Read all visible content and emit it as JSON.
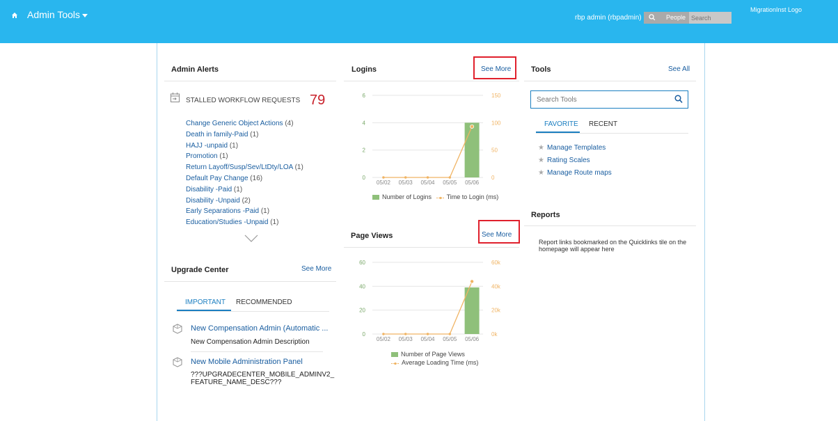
{
  "topbar": {
    "title": "Admin Tools",
    "user": "rbp admin (rbpadmin)",
    "search_scope": "People",
    "search_placeholder": "Search",
    "logo": "MigrationInst Logo"
  },
  "admin_alerts": {
    "title": "Admin Alerts",
    "stalled_label": "STALLED WORKFLOW REQUESTS",
    "stalled_count": "79",
    "items": [
      {
        "label": "Change Generic Object Actions",
        "count": "(4)"
      },
      {
        "label": "Death in family-Paid",
        "count": "(1)"
      },
      {
        "label": "HAJJ -unpaid",
        "count": "(1)"
      },
      {
        "label": "Promotion",
        "count": "(1)"
      },
      {
        "label": "Return Layoff/Susp/Sev/LtDty/LOA",
        "count": "(1)"
      },
      {
        "label": "Default Pay Change",
        "count": "(16)"
      },
      {
        "label": "Disability -Paid",
        "count": "(1)"
      },
      {
        "label": "Disability -Unpaid",
        "count": "(2)"
      },
      {
        "label": "Early Separations -Paid",
        "count": "(1)"
      },
      {
        "label": "Education/Studies -Unpaid",
        "count": "(1)"
      }
    ]
  },
  "upgrade_center": {
    "title": "Upgrade Center",
    "see_more": "See More",
    "tabs": [
      "IMPORTANT",
      "RECOMMENDED"
    ],
    "items": [
      {
        "title": "New Compensation Admin (Automatic ...",
        "desc": "New Compensation Admin Description"
      },
      {
        "title": "New Mobile Administration Panel",
        "desc1": "???UPGRADECENTER_MOBILE_ADMINV2_",
        "desc2": "FEATURE_NAME_DESC???"
      }
    ]
  },
  "logins": {
    "title": "Logins",
    "see_more": "See More"
  },
  "page_views": {
    "title": "Page Views",
    "see_more": "See More"
  },
  "tools": {
    "title": "Tools",
    "see_all": "See All",
    "search_placeholder": "Search Tools",
    "tabs": [
      "FAVORITE",
      "RECENT"
    ],
    "favorites": [
      "Manage Templates",
      "Rating Scales",
      "Manage Route maps"
    ]
  },
  "reports": {
    "title": "Reports",
    "text": "Report links bookmarked on the Quicklinks tile on the homepage will appear here"
  },
  "colors": {
    "topbar": "#29b6ee",
    "bar": "#8fc07a",
    "line": "#f0b464",
    "highlight": "#e0202c",
    "alert_count": "#c8202a"
  },
  "chart_data": [
    {
      "type": "bar",
      "categories": [
        "05/02",
        "05/03",
        "05/04",
        "05/05",
        "05/06"
      ],
      "series": [
        {
          "name": "Number of Logins",
          "type": "bar",
          "axis": "left",
          "values": [
            0,
            0,
            0,
            0,
            4
          ]
        },
        {
          "name": "Time to Login (ms)",
          "type": "line",
          "axis": "right",
          "values": [
            0,
            0,
            0,
            0,
            93
          ]
        }
      ],
      "yleft": {
        "ticks": [
          "0",
          "2",
          "4",
          "6"
        ],
        "lim": [
          0,
          6
        ]
      },
      "yright": {
        "ticks": [
          "0",
          "50",
          "100",
          "150"
        ],
        "lim": [
          0,
          150
        ]
      },
      "legend": "bottom"
    },
    {
      "type": "bar",
      "categories": [
        "05/02",
        "05/03",
        "05/04",
        "05/05",
        "05/06"
      ],
      "series": [
        {
          "name": "Number of Page Views",
          "type": "bar",
          "axis": "left",
          "values": [
            0,
            0,
            0,
            0,
            39
          ]
        },
        {
          "name": "Average Loading Time (ms)",
          "type": "line",
          "axis": "right",
          "values": [
            0,
            0,
            0,
            0,
            44000
          ]
        }
      ],
      "yleft": {
        "ticks": [
          "0",
          "20",
          "40",
          "60"
        ],
        "lim": [
          0,
          60
        ]
      },
      "yright": {
        "ticks": [
          "0k",
          "20k",
          "40k",
          "60k"
        ],
        "lim": [
          0,
          60000
        ]
      },
      "legend": "bottom"
    }
  ]
}
